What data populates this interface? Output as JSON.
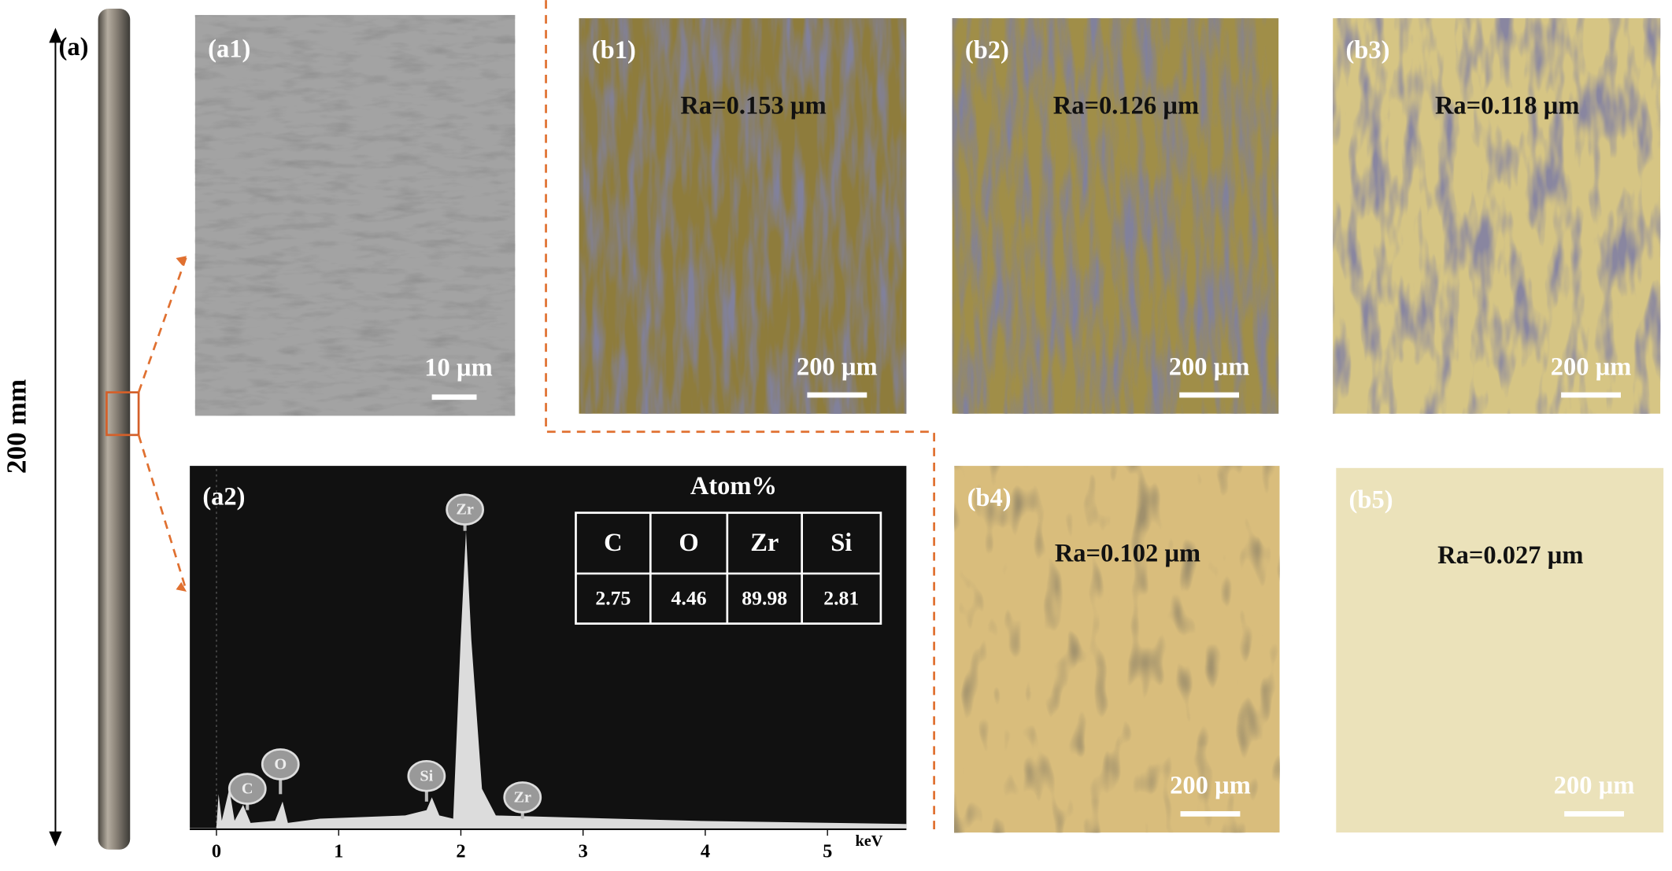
{
  "panels": {
    "a": {
      "label": "(a)",
      "length": "200 mm"
    },
    "a1": {
      "label": "(a1)",
      "scale": "10 µm"
    },
    "a2": {
      "label": "(a2)",
      "table": {
        "title": "Atom%",
        "header": [
          "C",
          "O",
          "Zr",
          "Si"
        ],
        "rows": [
          [
            "2.75",
            "4.46",
            "89.98",
            "2.81"
          ]
        ]
      },
      "peaks": [
        "C",
        "O",
        "Si",
        "Zr",
        "Zr"
      ],
      "x_ticks": [
        "0",
        "1",
        "2",
        "3",
        "4",
        "5"
      ],
      "x_unit": "keV"
    },
    "b": [
      {
        "label": "(b1)",
        "roughness": "Ra=0.153 µm",
        "scale": "200 µm"
      },
      {
        "label": "(b2)",
        "roughness": "Ra=0.126 µm",
        "scale": "200 µm"
      },
      {
        "label": "(b3)",
        "roughness": "Ra=0.118 µm",
        "scale": "200 µm"
      },
      {
        "label": "(b4)",
        "roughness": "Ra=0.102 µm",
        "scale": "200 µm"
      },
      {
        "label": "(b5)",
        "roughness": "Ra=0.027 µm",
        "scale": "200 µm"
      }
    ]
  }
}
